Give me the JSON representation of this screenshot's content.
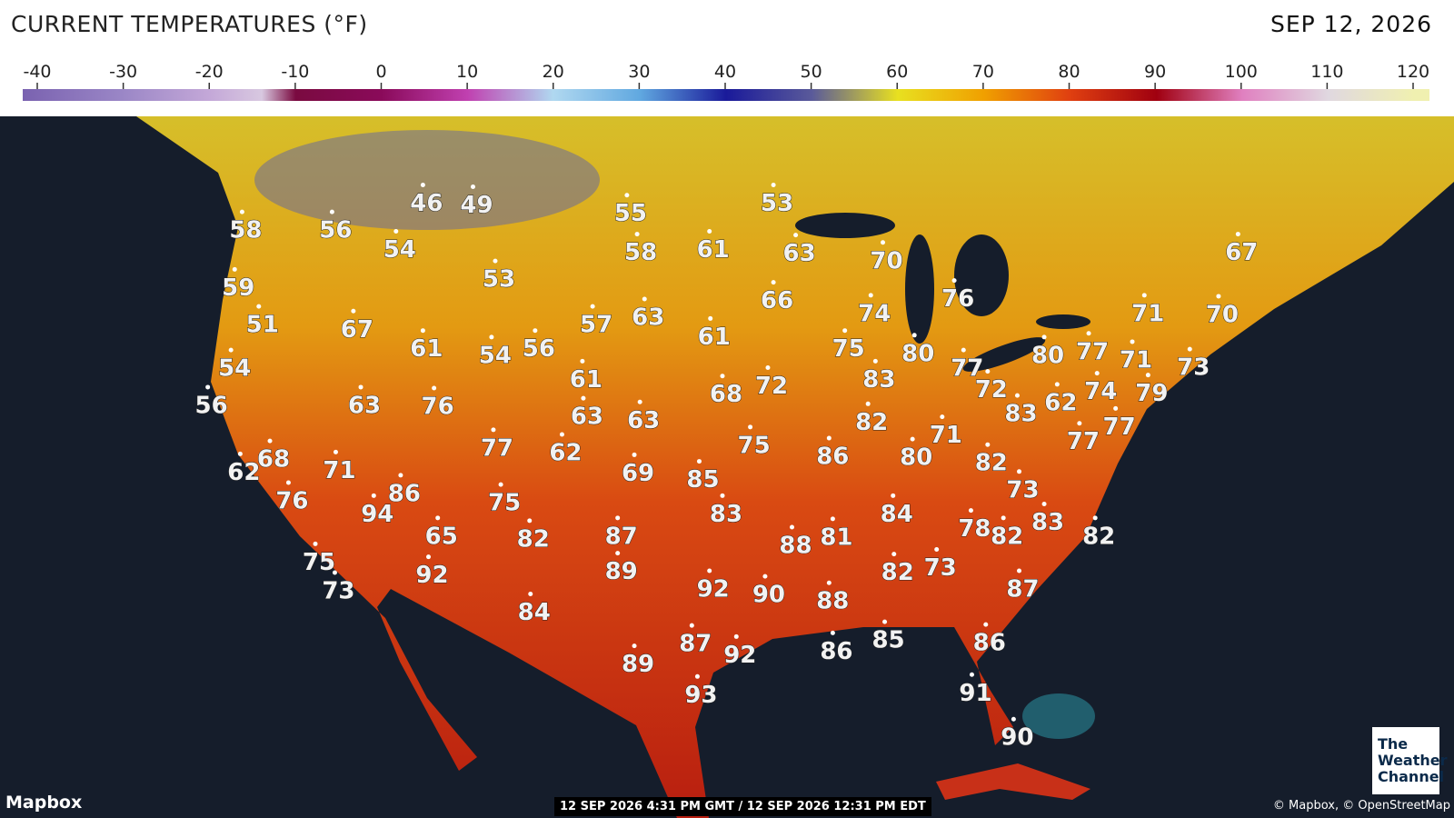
{
  "header": {
    "title": "CURRENT TEMPERATURES (°F)",
    "date": "SEP 12, 2026"
  },
  "colorbar": {
    "ticks": [
      -40,
      -30,
      -20,
      -10,
      0,
      10,
      20,
      30,
      40,
      50,
      60,
      70,
      80,
      90,
      100,
      110,
      120
    ]
  },
  "map": {
    "temperatures": [
      58,
      56,
      46,
      49,
      54,
      55,
      58,
      61,
      53,
      63,
      70,
      67,
      59,
      51,
      53,
      67,
      57,
      63,
      66,
      74,
      76,
      71,
      70,
      54,
      61,
      54,
      56,
      61,
      75,
      80,
      77,
      80,
      77,
      71,
      73,
      56,
      63,
      76,
      61,
      68,
      72,
      83,
      72,
      62,
      74,
      79,
      63,
      63,
      82,
      83,
      71,
      77,
      77,
      68,
      62,
      71,
      77,
      62,
      75,
      86,
      80,
      82,
      69,
      85,
      73,
      76,
      86,
      94,
      75,
      83,
      84,
      65,
      82,
      87,
      88,
      81,
      78,
      82,
      83,
      82,
      75,
      92,
      89,
      73,
      92,
      90,
      88,
      82,
      73,
      87,
      84,
      87,
      92,
      86,
      85,
      86,
      89,
      93,
      91,
      90
    ]
  },
  "footer": {
    "provider": "Mapbox",
    "timestamp": "12 SEP 2026 4:31 PM GMT / 12 SEP 2026 12:31 PM EDT",
    "attribution": "© Mapbox, © OpenStreetMap",
    "logo": [
      "The",
      "Weather",
      "Channel"
    ]
  }
}
